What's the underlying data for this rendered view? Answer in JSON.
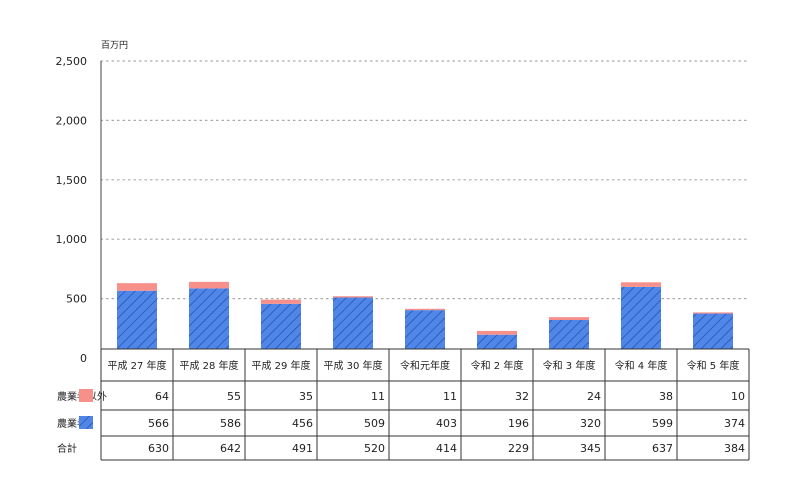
{
  "chart_data": {
    "type": "bar",
    "stacked": true,
    "unit": "百万円",
    "categories": [
      "平成 27 年度",
      "平成 28 年度",
      "平成 29 年度",
      "平成 30 年度",
      "令和元年度",
      "令和 2 年度",
      "令和 3 年度",
      "令和 4 年度",
      "令和 5 年度"
    ],
    "series": [
      {
        "name": "農業者",
        "values": [
          566,
          586,
          456,
          509,
          403,
          196,
          320,
          599,
          374
        ],
        "color": "#4f86e8",
        "pattern": "diagonal-hatch"
      },
      {
        "name": "農業者以外",
        "values": [
          64,
          55,
          35,
          11,
          11,
          32,
          24,
          38,
          10
        ],
        "color": "#f78f8a"
      }
    ],
    "totals_label": "合計",
    "totals": [
      630,
      642,
      491,
      520,
      414,
      229,
      345,
      637,
      384
    ],
    "ylim": [
      0,
      2500
    ],
    "yticks": [
      "0",
      "500",
      "1,000",
      "1,500",
      "2,000",
      "2,500"
    ],
    "ytick_values": [
      0,
      500,
      1000,
      1500,
      2000,
      2500
    ],
    "grid": true,
    "legend_placement": "table-left"
  }
}
